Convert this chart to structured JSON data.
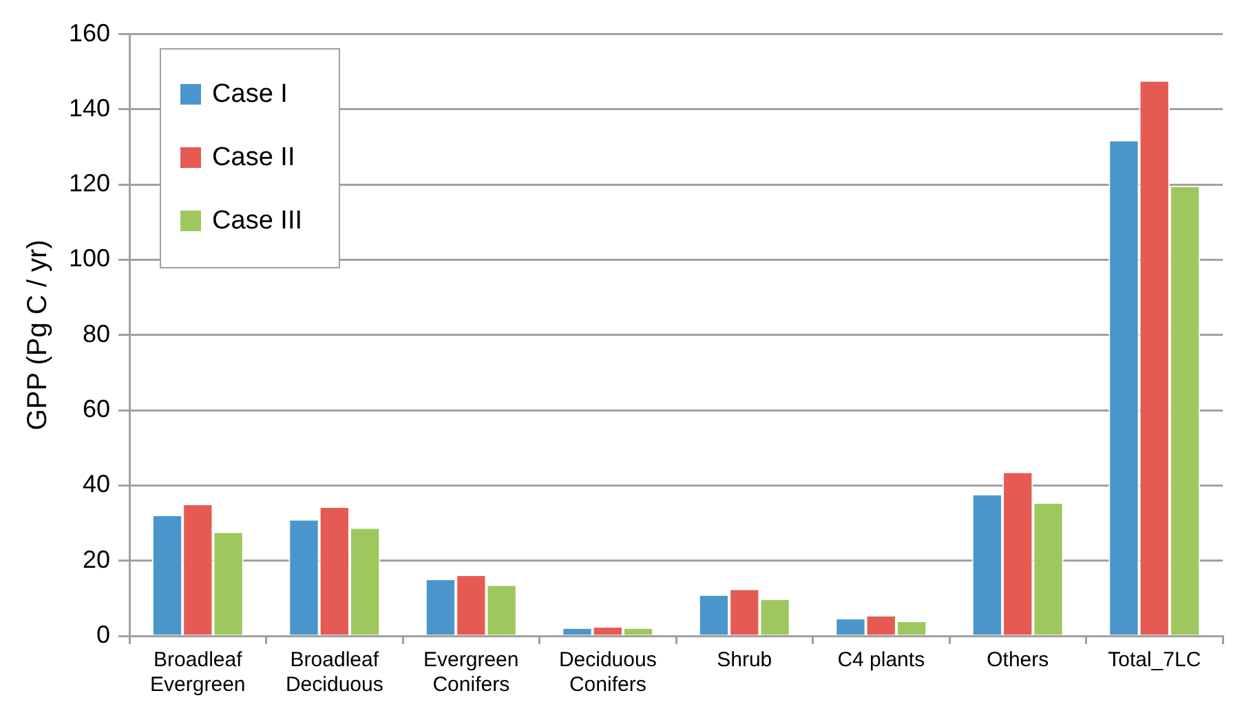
{
  "chart_data": {
    "type": "bar",
    "ylabel": "GPP (Pg C / yr)",
    "categories": [
      "Broadleaf Evergreen",
      "Broadleaf Deciduous",
      "Evergreen Conifers",
      "Deciduous Conifers",
      "Shrub",
      "C4 plants",
      "Others",
      "Total_7LC"
    ],
    "series": [
      {
        "name": "Case I",
        "color": "#4a96cb",
        "values": [
          31.9,
          30.7,
          14.8,
          1.9,
          10.7,
          4.4,
          37.4,
          131.5
        ]
      },
      {
        "name": "Case II",
        "color": "#e55b54",
        "values": [
          34.8,
          34.1,
          15.9,
          2.2,
          12.2,
          5.2,
          43.3,
          147.4
        ]
      },
      {
        "name": "Case III",
        "color": "#9ec85e",
        "values": [
          27.4,
          28.5,
          13.3,
          1.9,
          9.6,
          3.7,
          35.2,
          119.4
        ]
      }
    ],
    "ylim": [
      0,
      160
    ],
    "yticks": [
      0,
      20,
      40,
      60,
      80,
      100,
      120,
      140,
      160
    ],
    "grid": "y",
    "legend": "top left"
  }
}
